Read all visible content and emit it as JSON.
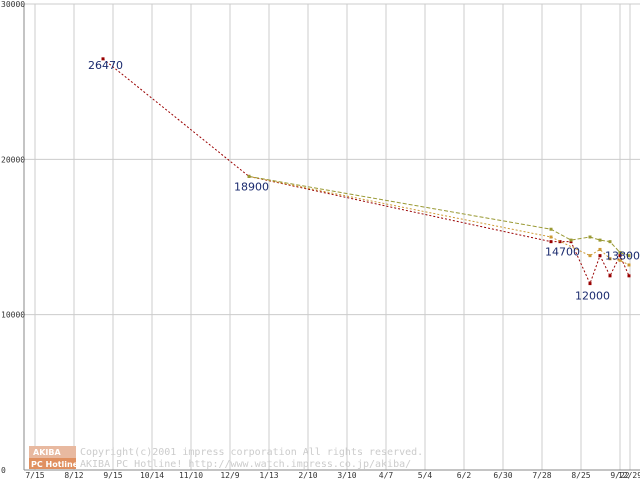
{
  "chart_data": {
    "type": "line",
    "title": "",
    "xlabel": "",
    "ylabel": "",
    "ylim": [
      0,
      30000
    ],
    "y_ticks": [
      0,
      10000,
      20000,
      30000
    ],
    "y_tick_labels": [
      "0",
      "10000",
      "20000",
      "30000"
    ],
    "x_tick_labels": [
      "7/15",
      "8/12",
      "9/15",
      "10/14",
      "11/10",
      "12/9",
      "1/13",
      "2/10",
      "3/10",
      "4/7",
      "5/4",
      "6/2",
      "6/30",
      "7/28",
      "8/25",
      "9/22",
      "12/29"
    ],
    "grid": true,
    "series": [
      {
        "name": "series-1",
        "color": "#990000",
        "style": "dotted",
        "points": [
          [
            0,
            26470
          ],
          [
            6,
            18900
          ],
          [
            14,
            14700
          ],
          [
            15,
            14700
          ],
          [
            16,
            14700
          ],
          [
            17,
            12000
          ],
          [
            18,
            13800
          ],
          [
            19,
            12500
          ],
          [
            20,
            13800
          ],
          [
            21,
            12500
          ]
        ]
      },
      {
        "name": "series-2",
        "color": "#cc9933",
        "style": "dotted",
        "points": [
          [
            6,
            18900
          ],
          [
            14,
            15000
          ],
          [
            17,
            13800
          ],
          [
            18,
            14200
          ],
          [
            19,
            13600
          ],
          [
            20,
            13500
          ],
          [
            21,
            13200
          ]
        ]
      },
      {
        "name": "series-3",
        "color": "#999933",
        "style": "dashed",
        "points": [
          [
            6,
            18900
          ],
          [
            14,
            15500
          ],
          [
            16,
            14800
          ],
          [
            17,
            15000
          ],
          [
            18,
            14800
          ],
          [
            19,
            14700
          ],
          [
            20,
            14000
          ],
          [
            21,
            13800
          ]
        ]
      }
    ],
    "data_labels": [
      {
        "text": "26470",
        "value": 26470
      },
      {
        "text": "18900",
        "value": 18900
      },
      {
        "text": "14700",
        "value": 14700
      },
      {
        "text": "12000",
        "value": 12000
      },
      {
        "text": "13800",
        "value": 13800
      }
    ],
    "credit": {
      "line1": "Copyright(c)2001 impress corporation All rights reserved.",
      "line2": "AKIBA PC Hotline!  http://www.watch.impress.co.jp/akiba/",
      "logo_top": "AKIBA",
      "logo_bottom": "PC Hotline"
    }
  }
}
